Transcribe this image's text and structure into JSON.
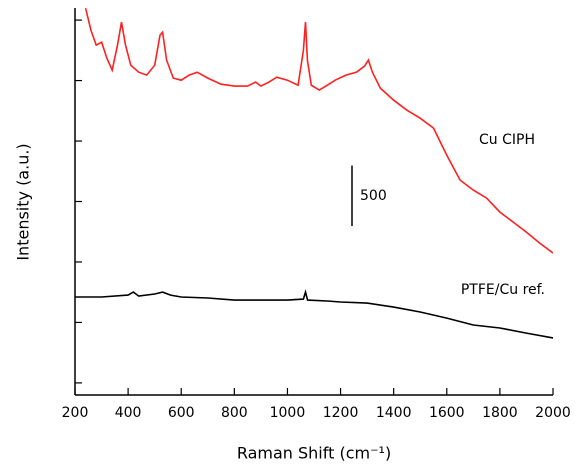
{
  "chart_data": {
    "type": "line",
    "xlabel": "Raman Shift (cm⁻¹)",
    "ylabel": "Intensity (a.u.)",
    "xlim": [
      200,
      2000
    ],
    "xticks": [
      200,
      400,
      600,
      800,
      1000,
      1200,
      1400,
      1600,
      1800,
      2000
    ],
    "ylim": [
      0,
      3200
    ],
    "yticks": [
      100,
      600,
      1100,
      1600,
      2100,
      2600,
      3100
    ],
    "scale_bar": {
      "label": "500",
      "value": 500
    },
    "series": [
      {
        "name": "Cu CIPH",
        "color": "#ff2020",
        "x": [
          240,
          260,
          280,
          300,
          320,
          340,
          360,
          375,
          390,
          410,
          440,
          470,
          500,
          520,
          530,
          545,
          570,
          600,
          630,
          660,
          700,
          750,
          800,
          850,
          880,
          900,
          930,
          960,
          1000,
          1040,
          1060,
          1068,
          1075,
          1090,
          1120,
          1150,
          1180,
          1220,
          1260,
          1290,
          1305,
          1320,
          1350,
          1400,
          1450,
          1500,
          1550,
          1600,
          1650,
          1700,
          1750,
          1800,
          1850,
          1900,
          1950,
          2000
        ],
        "values": [
          3198,
          3017,
          2893,
          2917,
          2785,
          2686,
          2893,
          3083,
          2893,
          2727,
          2669,
          2645,
          2727,
          2975,
          3000,
          2769,
          2620,
          2603,
          2645,
          2669,
          2620,
          2570,
          2554,
          2554,
          2587,
          2554,
          2587,
          2628,
          2603,
          2562,
          2851,
          3083,
          2769,
          2562,
          2521,
          2562,
          2603,
          2645,
          2669,
          2719,
          2769,
          2669,
          2537,
          2438,
          2355,
          2289,
          2207,
          1983,
          1777,
          1694,
          1628,
          1512,
          1430,
          1347,
          1256,
          1174
        ]
      },
      {
        "name": "PTFE/Cu ref.",
        "color": "#000000",
        "x": [
          200,
          300,
          400,
          420,
          440,
          500,
          530,
          560,
          600,
          700,
          800,
          900,
          1000,
          1060,
          1068,
          1076,
          1150,
          1200,
          1300,
          1400,
          1500,
          1600,
          1700,
          1800,
          1900,
          2000
        ],
        "values": [
          810,
          810,
          826,
          851,
          818,
          835,
          851,
          826,
          810,
          802,
          785,
          785,
          785,
          793,
          851,
          785,
          777,
          769,
          760,
          727,
          686,
          636,
          579,
          554,
          512,
          471
        ]
      }
    ]
  }
}
